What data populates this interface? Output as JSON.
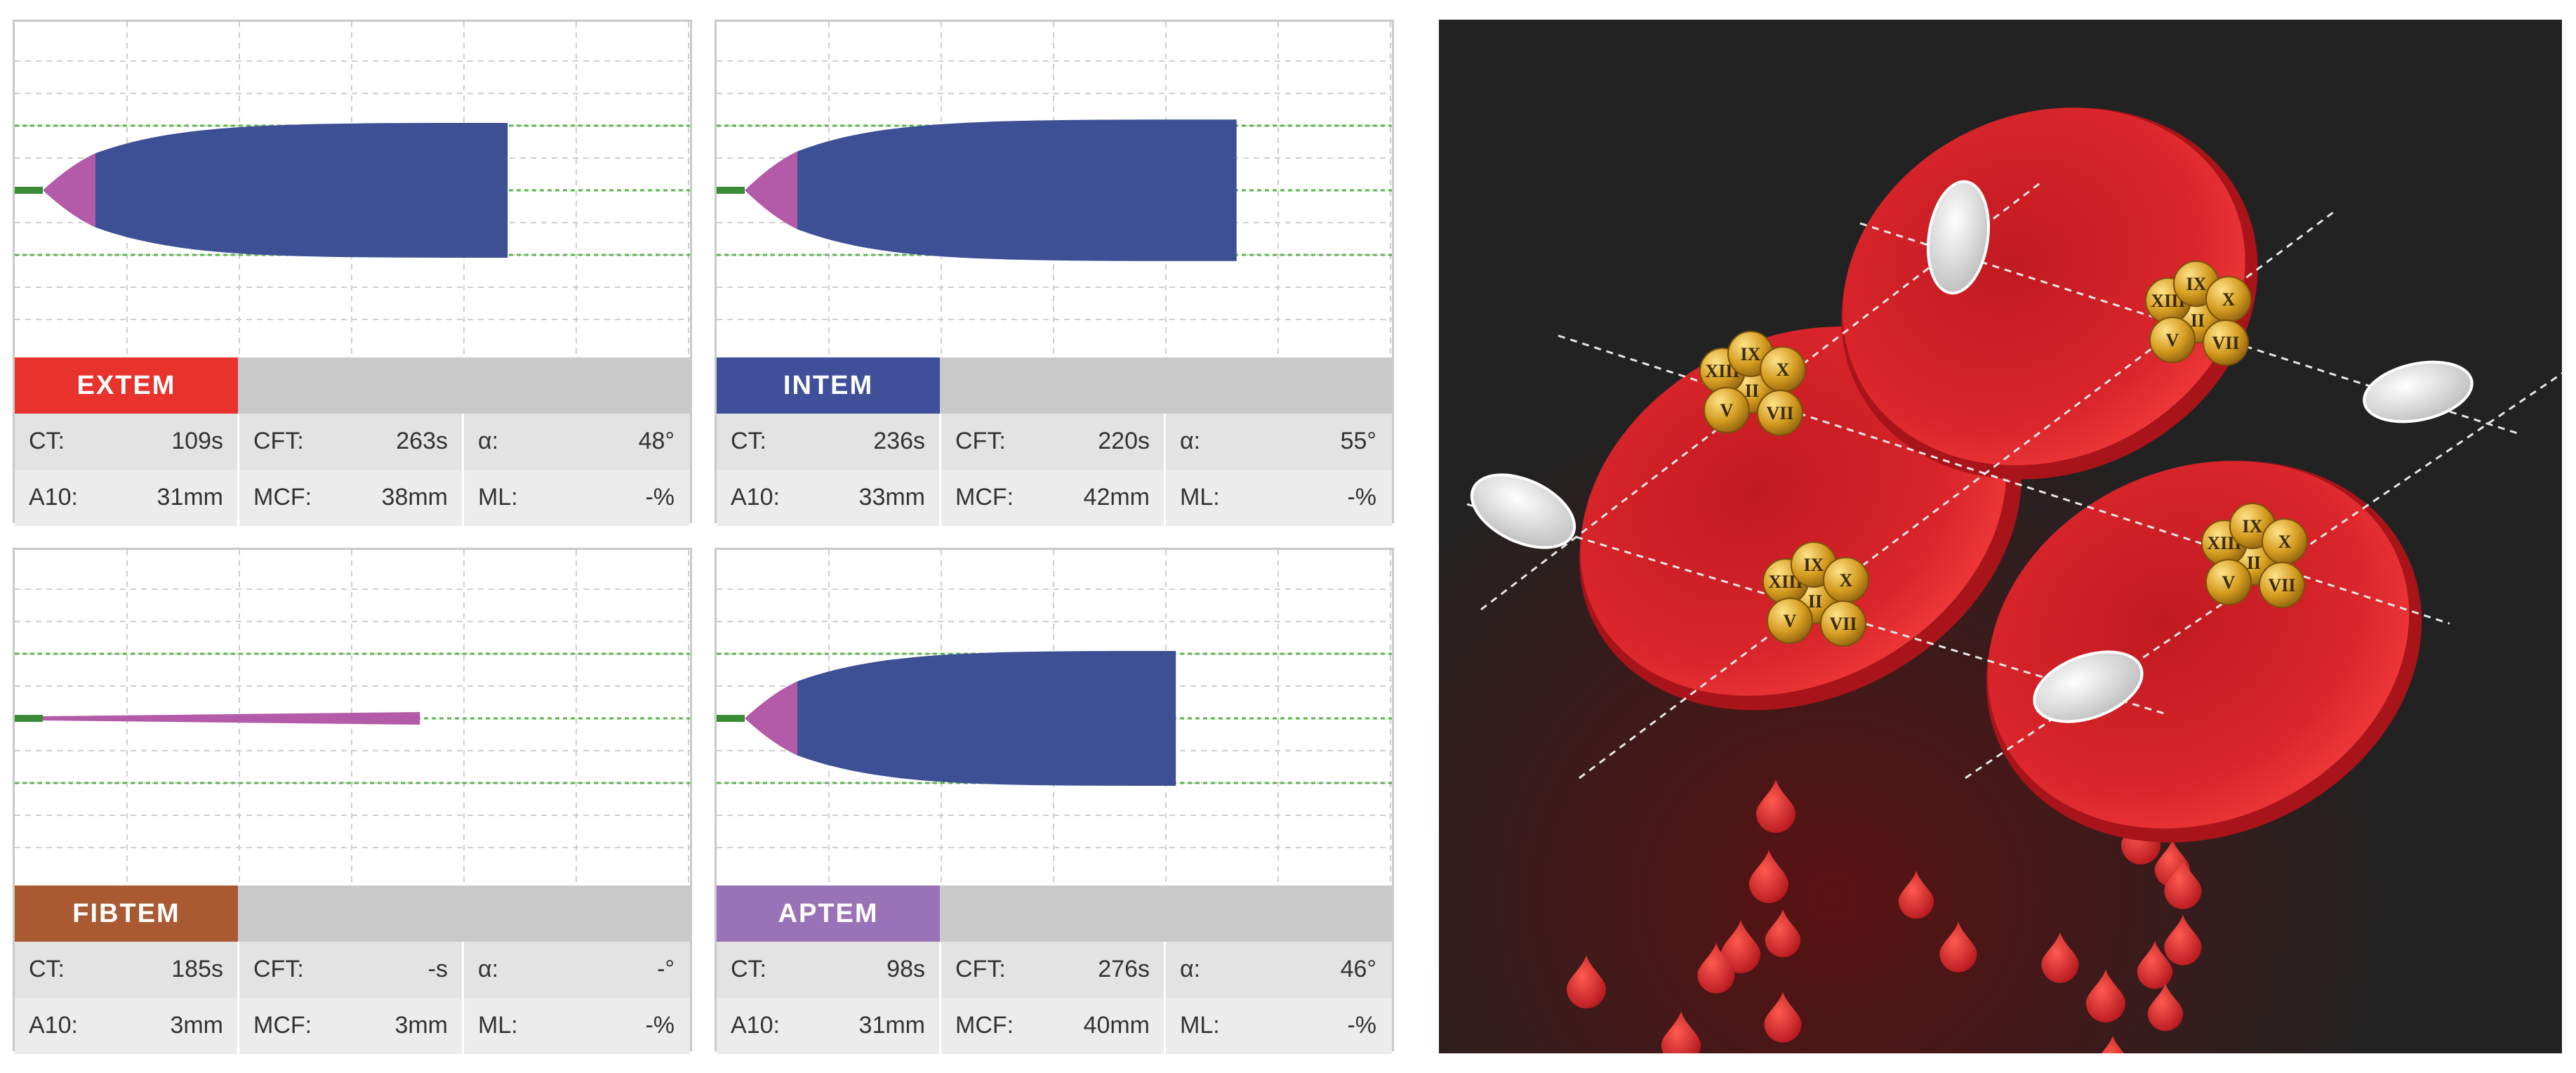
{
  "panels": [
    {
      "label": "EXTEM",
      "color": "#e8322e",
      "row1": [
        {
          "k": "CT:",
          "v": "109s"
        },
        {
          "k": "CFT:",
          "v": "263s"
        },
        {
          "k": "α:",
          "v": "48°"
        }
      ],
      "row2": [
        {
          "k": "A10:",
          "v": "31mm"
        },
        {
          "k": "MCF:",
          "v": "38mm"
        },
        {
          "k": "ML:",
          "v": "-%"
        }
      ],
      "trace": {
        "type": "full",
        "mcf_level": 0.8,
        "end_fraction": 0.73
      }
    },
    {
      "label": "INTEM",
      "color": "#3f4f9a",
      "row1": [
        {
          "k": "CT:",
          "v": "236s"
        },
        {
          "k": "CFT:",
          "v": "220s"
        },
        {
          "k": "α:",
          "v": "55°"
        }
      ],
      "row2": [
        {
          "k": "A10:",
          "v": "33mm"
        },
        {
          "k": "MCF:",
          "v": "42mm"
        },
        {
          "k": "ML:",
          "v": "-%"
        }
      ],
      "trace": {
        "type": "full",
        "mcf_level": 0.84,
        "end_fraction": 0.77
      }
    },
    {
      "label": "FIBTEM",
      "color": "#a95a32",
      "row1": [
        {
          "k": "CT:",
          "v": "185s"
        },
        {
          "k": "CFT:",
          "v": "-s"
        },
        {
          "k": "α:",
          "v": "-°"
        }
      ],
      "row2": [
        {
          "k": "A10:",
          "v": "3mm"
        },
        {
          "k": "MCF:",
          "v": "3mm"
        },
        {
          "k": "ML:",
          "v": "-%"
        }
      ],
      "trace": {
        "type": "thin",
        "mcf_level": 0.09,
        "end_fraction": 0.6
      }
    },
    {
      "label": "APTEM",
      "color": "#9a72b8",
      "row1": [
        {
          "k": "CT:",
          "v": "98s"
        },
        {
          "k": "CFT:",
          "v": "276s"
        },
        {
          "k": "α:",
          "v": "46°"
        }
      ],
      "row2": [
        {
          "k": "A10:",
          "v": "31mm"
        },
        {
          "k": "MCF:",
          "v": "40mm"
        },
        {
          "k": "ML:",
          "v": "-%"
        }
      ],
      "trace": {
        "type": "full",
        "mcf_level": 0.8,
        "end_fraction": 0.68
      }
    }
  ],
  "illustration": {
    "factor_labels": [
      "XIII",
      "IX",
      "X",
      "II",
      "V",
      "VII"
    ]
  },
  "colors": {
    "clot_body": "#3d4f95",
    "clot_tip": "#b35aa8",
    "baseline": "#3b8a35",
    "guide": "#5bb54a",
    "grid": "#cfcfcf",
    "cell_red": "#d61f26",
    "background_dark": "#222222",
    "platelet": "#eeeeee",
    "factor_gold": "#d8a325"
  }
}
